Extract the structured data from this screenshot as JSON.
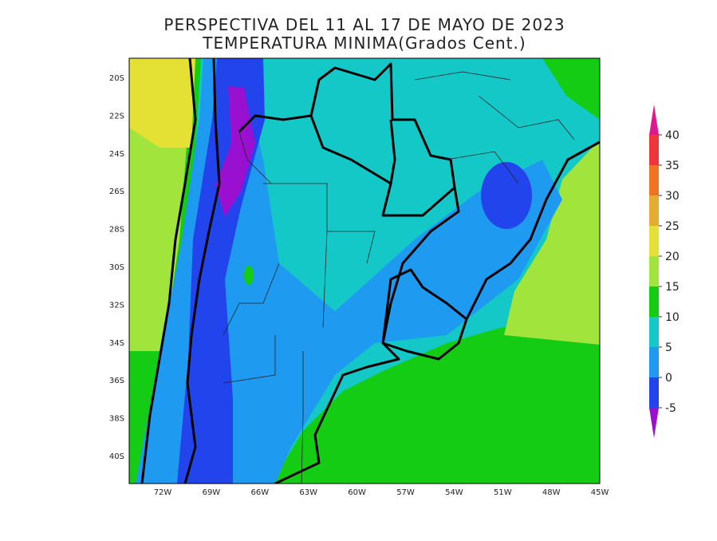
{
  "header": {
    "title": "PERSPECTIVA DEL 11 AL 17 DE MAYO DE 2023",
    "subtitle": "TEMPERATURA MINIMA(Grados Cent.)"
  },
  "map": {
    "lat_labels": [
      "20S",
      "22S",
      "24S",
      "26S",
      "28S",
      "30S",
      "32S",
      "34S",
      "36S",
      "38S",
      "40S"
    ],
    "lon_labels": [
      "72W",
      "69W",
      "66W",
      "63W",
      "60W",
      "57W",
      "54W",
      "51W",
      "48W",
      "45W"
    ]
  },
  "colorbar": {
    "levels": [
      -5,
      0,
      5,
      10,
      15,
      20,
      25,
      30,
      35,
      40
    ],
    "colors": [
      "#9a10d0",
      "#2244ec",
      "#1e9af0",
      "#14c8c8",
      "#14cc14",
      "#a0e43c",
      "#e4e034",
      "#e4ac30",
      "#ee7424",
      "#f0343c",
      "#e01890"
    ]
  }
}
